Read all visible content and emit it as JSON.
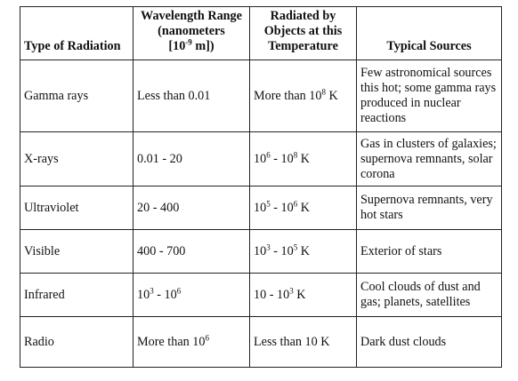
{
  "table": {
    "headers": {
      "type": "Type of Radiation",
      "wavelength": [
        "Wavelength Range",
        "(nanometers",
        "[10",
        "-9",
        " m])"
      ],
      "temperature": [
        "Radiated by",
        "Objects at this",
        "Temperature"
      ],
      "sources": "Typical Sources"
    },
    "rows": [
      {
        "type": "Gamma rays",
        "wavelength": "Less than 0.01",
        "temp": {
          "pre": "More than 10",
          "exp": "8",
          "mid": "",
          "exp2": "",
          "post": " K"
        },
        "sources": "Few astronomical sources this hot; some gamma rays produced in nuclear reactions"
      },
      {
        "type": "X-rays",
        "wavelength": "0.01 - 20",
        "temp": {
          "pre": "10",
          "exp": "6",
          "mid": " - 10",
          "exp2": "8",
          "post": " K"
        },
        "sources": "Gas in clusters of galaxies; supernova remnants, solar corona"
      },
      {
        "type": "Ultraviolet",
        "wavelength": "20 - 400",
        "temp": {
          "pre": "10",
          "exp": "5",
          "mid": " - 10",
          "exp2": "6",
          "post": " K"
        },
        "sources": "Supernova remnants, very hot stars"
      },
      {
        "type": "Visible",
        "wavelength": "400 - 700",
        "temp": {
          "pre": "10",
          "exp": "3",
          "mid": " - 10",
          "exp2": "5",
          "post": " K"
        },
        "sources": "Exterior of stars"
      },
      {
        "type": "Infrared",
        "wavelength": {
          "pre": "10",
          "exp": "3",
          "mid": " - 10",
          "exp2": "6"
        },
        "temp": {
          "pre": "10 - 10",
          "exp": "3",
          "mid": "",
          "exp2": "",
          "post": " K"
        },
        "sources": "Cool clouds of dust and gas; planets, satellites"
      },
      {
        "type": "Radio",
        "wavelength": {
          "pre": "More than 10",
          "exp": "6",
          "mid": "",
          "exp2": ""
        },
        "temp": {
          "pre": "Less than 10 K",
          "exp": "",
          "mid": "",
          "exp2": "",
          "post": ""
        },
        "sources": "Dark dust clouds"
      }
    ]
  }
}
